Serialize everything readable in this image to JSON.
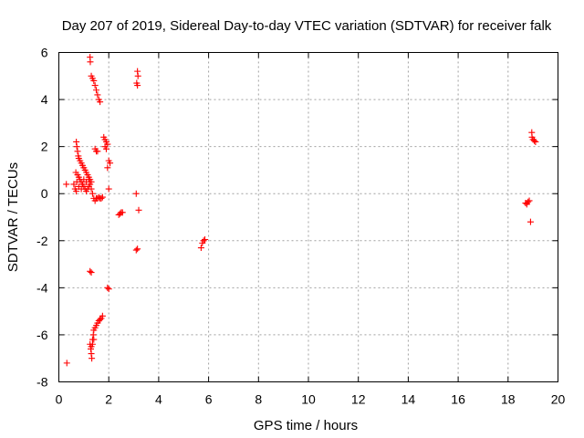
{
  "chart_data": {
    "type": "scatter",
    "title": "Day 207 of 2019, Sidereal Day-to-day VTEC variation (SDTVAR) for receiver falk",
    "xlabel": "GPS time / hours",
    "ylabel": "SDTVAR / TECUs",
    "xlim": [
      0,
      20
    ],
    "ylim": [
      -8,
      6
    ],
    "xticks": [
      0,
      2,
      4,
      6,
      8,
      10,
      12,
      14,
      16,
      18,
      20
    ],
    "yticks": [
      -8,
      -6,
      -4,
      -2,
      0,
      2,
      4,
      6
    ],
    "xtick_labels": [
      "0",
      "2",
      "4",
      "6",
      "8",
      "10",
      "12",
      "14",
      "16",
      "18",
      "20"
    ],
    "ytick_labels": [
      "-8",
      "-6",
      "-4",
      "-2",
      "0",
      "2",
      "4",
      "6"
    ],
    "grid": true,
    "marker": "plus",
    "color": "#ff0000",
    "series": [
      {
        "name": "SDTVAR",
        "points": [
          [
            0.3,
            0.4
          ],
          [
            0.32,
            -7.2
          ],
          [
            0.6,
            0.4
          ],
          [
            0.65,
            0.2
          ],
          [
            0.7,
            0.1
          ],
          [
            0.72,
            0.5
          ],
          [
            0.68,
            0.9
          ],
          [
            0.75,
            0.8
          ],
          [
            0.8,
            0.7
          ],
          [
            0.85,
            0.6
          ],
          [
            0.9,
            0.5
          ],
          [
            0.95,
            0.4
          ],
          [
            1.0,
            0.3
          ],
          [
            1.05,
            0.2
          ],
          [
            1.1,
            0.1
          ],
          [
            1.15,
            0.2
          ],
          [
            1.2,
            0.3
          ],
          [
            1.25,
            0.4
          ],
          [
            1.3,
            0.5
          ],
          [
            0.8,
            0.3
          ],
          [
            0.9,
            0.2
          ],
          [
            1.0,
            0.6
          ],
          [
            1.1,
            0.5
          ],
          [
            1.2,
            0.6
          ],
          [
            1.3,
            0.2
          ],
          [
            1.35,
            0.0
          ],
          [
            1.4,
            -0.2
          ],
          [
            1.45,
            -0.3
          ],
          [
            1.5,
            -0.2
          ],
          [
            1.55,
            -0.2
          ],
          [
            1.6,
            -0.15
          ],
          [
            1.65,
            -0.2
          ],
          [
            1.7,
            -0.2
          ],
          [
            1.75,
            -0.15
          ],
          [
            0.7,
            2.2
          ],
          [
            0.72,
            2.0
          ],
          [
            0.75,
            1.8
          ],
          [
            0.78,
            1.6
          ],
          [
            0.8,
            1.5
          ],
          [
            0.85,
            1.4
          ],
          [
            0.9,
            1.3
          ],
          [
            0.95,
            1.2
          ],
          [
            1.0,
            1.1
          ],
          [
            1.05,
            1.0
          ],
          [
            1.1,
            0.9
          ],
          [
            1.15,
            0.8
          ],
          [
            1.2,
            0.7
          ],
          [
            1.25,
            0.6
          ],
          [
            1.25,
            5.8
          ],
          [
            1.26,
            5.6
          ],
          [
            1.3,
            5.0
          ],
          [
            1.35,
            4.9
          ],
          [
            1.4,
            4.8
          ],
          [
            1.45,
            4.6
          ],
          [
            1.5,
            4.4
          ],
          [
            1.55,
            4.2
          ],
          [
            1.6,
            4.0
          ],
          [
            1.65,
            3.9
          ],
          [
            1.45,
            1.9
          ],
          [
            1.5,
            1.8
          ],
          [
            1.55,
            1.8
          ],
          [
            1.25,
            -3.3
          ],
          [
            1.3,
            -3.35
          ],
          [
            1.25,
            -6.4
          ],
          [
            1.28,
            -6.6
          ],
          [
            1.3,
            -6.8
          ],
          [
            1.32,
            -7.0
          ],
          [
            1.35,
            -6.2
          ],
          [
            1.38,
            -6.0
          ],
          [
            1.4,
            -5.8
          ],
          [
            1.45,
            -5.7
          ],
          [
            1.5,
            -5.6
          ],
          [
            1.55,
            -5.5
          ],
          [
            1.6,
            -5.4
          ],
          [
            1.65,
            -5.35
          ],
          [
            1.7,
            -5.3
          ],
          [
            1.75,
            -5.2
          ],
          [
            1.3,
            -6.5
          ],
          [
            1.35,
            -6.4
          ],
          [
            1.4,
            -6.2
          ],
          [
            1.8,
            2.4
          ],
          [
            1.85,
            2.3
          ],
          [
            1.9,
            2.2
          ],
          [
            1.95,
            2.1
          ],
          [
            1.85,
            2.0
          ],
          [
            1.9,
            1.9
          ],
          [
            1.95,
            1.1
          ],
          [
            2.0,
            1.4
          ],
          [
            2.05,
            1.3
          ],
          [
            2.0,
            0.2
          ],
          [
            1.95,
            -4.0
          ],
          [
            2.0,
            -4.05
          ],
          [
            2.4,
            -0.9
          ],
          [
            2.45,
            -0.85
          ],
          [
            2.5,
            -0.8
          ],
          [
            2.55,
            -0.8
          ],
          [
            3.1,
            0.0
          ],
          [
            3.15,
            5.2
          ],
          [
            3.17,
            5.0
          ],
          [
            3.12,
            4.7
          ],
          [
            3.15,
            4.6
          ],
          [
            3.2,
            -0.7
          ],
          [
            3.1,
            -2.4
          ],
          [
            3.15,
            -2.35
          ],
          [
            5.7,
            -2.3
          ],
          [
            5.75,
            -2.1
          ],
          [
            5.8,
            -2.0
          ],
          [
            5.85,
            -1.95
          ],
          [
            18.7,
            -0.4
          ],
          [
            18.75,
            -0.45
          ],
          [
            18.8,
            -0.35
          ],
          [
            18.85,
            -0.3
          ],
          [
            18.9,
            -1.2
          ],
          [
            18.95,
            2.6
          ],
          [
            18.96,
            2.4
          ],
          [
            19.0,
            2.3
          ],
          [
            19.05,
            2.25
          ],
          [
            19.1,
            2.2
          ]
        ]
      }
    ]
  }
}
